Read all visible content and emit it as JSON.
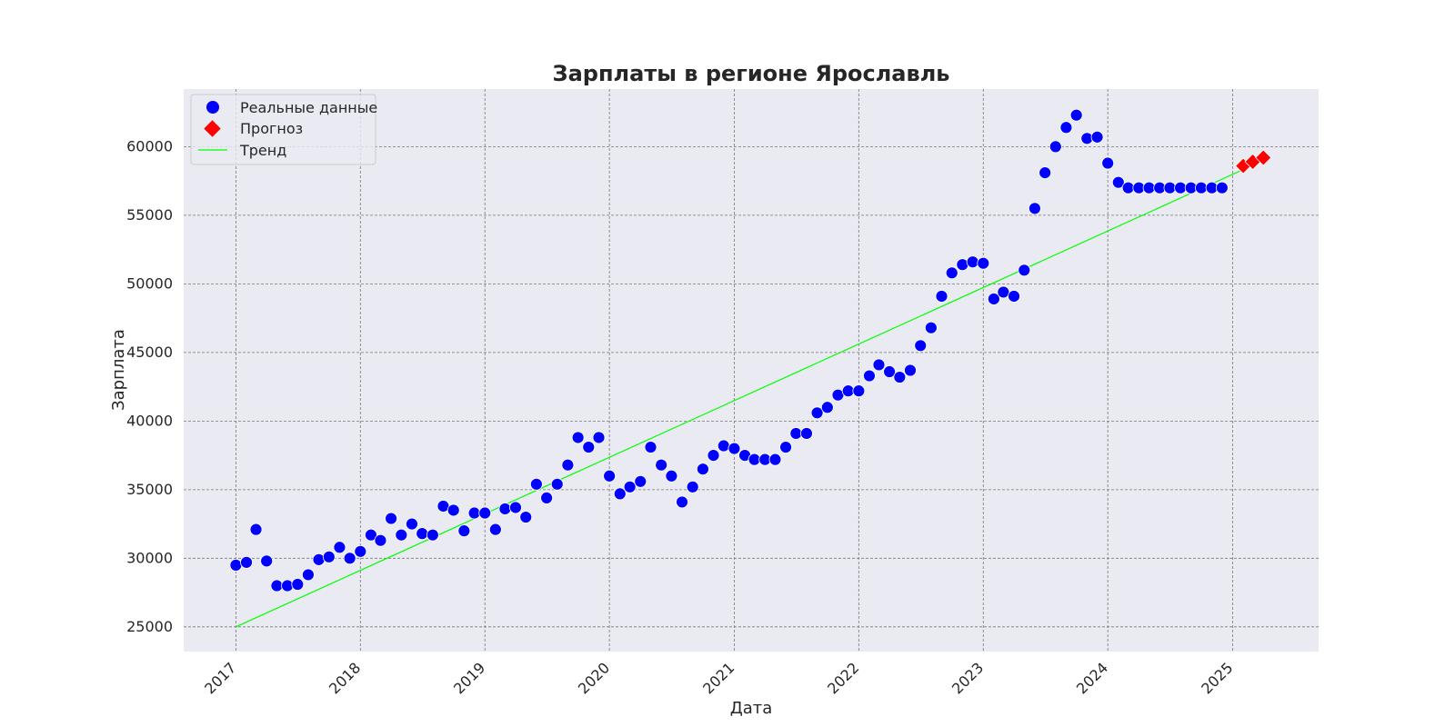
{
  "chart_data": {
    "type": "scatter",
    "title": "Зарплаты в регионе Ярославль",
    "xlabel": "Дата",
    "ylabel": "Зарплата",
    "x_type": "date",
    "xlim": [
      "2016-08-01",
      "2025-09-10"
    ],
    "ylim": [
      23200,
      64200
    ],
    "grid": true,
    "legend_position": "top-left",
    "x_ticks": [
      {
        "value": "2017-01-01",
        "label": "2017"
      },
      {
        "value": "2018-01-01",
        "label": "2018"
      },
      {
        "value": "2019-01-01",
        "label": "2019"
      },
      {
        "value": "2020-01-01",
        "label": "2020"
      },
      {
        "value": "2021-01-01",
        "label": "2021"
      },
      {
        "value": "2022-01-01",
        "label": "2022"
      },
      {
        "value": "2023-01-01",
        "label": "2023"
      },
      {
        "value": "2024-01-01",
        "label": "2024"
      },
      {
        "value": "2025-01-01",
        "label": "2025"
      }
    ],
    "y_ticks": [
      {
        "value": 25000,
        "label": "25000"
      },
      {
        "value": 30000,
        "label": "30000"
      },
      {
        "value": 35000,
        "label": "35000"
      },
      {
        "value": 40000,
        "label": "40000"
      },
      {
        "value": 45000,
        "label": "45000"
      },
      {
        "value": 50000,
        "label": "50000"
      },
      {
        "value": 55000,
        "label": "55000"
      },
      {
        "value": 60000,
        "label": "60000"
      }
    ],
    "series": [
      {
        "name": "Реальные данные",
        "type": "scatter",
        "marker": "circle",
        "color": "#0000ff",
        "points": [
          {
            "x": "2017-01-01",
            "y": 29500
          },
          {
            "x": "2017-02-01",
            "y": 29700
          },
          {
            "x": "2017-03-01",
            "y": 32100
          },
          {
            "x": "2017-04-01",
            "y": 29800
          },
          {
            "x": "2017-05-01",
            "y": 28000
          },
          {
            "x": "2017-06-01",
            "y": 28000
          },
          {
            "x": "2017-07-01",
            "y": 28100
          },
          {
            "x": "2017-08-01",
            "y": 28800
          },
          {
            "x": "2017-09-01",
            "y": 29900
          },
          {
            "x": "2017-10-01",
            "y": 30100
          },
          {
            "x": "2017-11-01",
            "y": 30800
          },
          {
            "x": "2017-12-01",
            "y": 30000
          },
          {
            "x": "2018-01-01",
            "y": 30500
          },
          {
            "x": "2018-02-01",
            "y": 31700
          },
          {
            "x": "2018-03-01",
            "y": 31300
          },
          {
            "x": "2018-04-01",
            "y": 32900
          },
          {
            "x": "2018-05-01",
            "y": 31700
          },
          {
            "x": "2018-06-01",
            "y": 32500
          },
          {
            "x": "2018-07-01",
            "y": 31800
          },
          {
            "x": "2018-08-01",
            "y": 31700
          },
          {
            "x": "2018-09-01",
            "y": 33800
          },
          {
            "x": "2018-10-01",
            "y": 33500
          },
          {
            "x": "2018-11-01",
            "y": 32000
          },
          {
            "x": "2018-12-01",
            "y": 33300
          },
          {
            "x": "2019-01-01",
            "y": 33300
          },
          {
            "x": "2019-02-01",
            "y": 32100
          },
          {
            "x": "2019-03-01",
            "y": 33600
          },
          {
            "x": "2019-04-01",
            "y": 33700
          },
          {
            "x": "2019-05-01",
            "y": 33000
          },
          {
            "x": "2019-06-01",
            "y": 35400
          },
          {
            "x": "2019-07-01",
            "y": 34400
          },
          {
            "x": "2019-08-01",
            "y": 35400
          },
          {
            "x": "2019-09-01",
            "y": 36800
          },
          {
            "x": "2019-10-01",
            "y": 38800
          },
          {
            "x": "2019-11-01",
            "y": 38100
          },
          {
            "x": "2019-12-01",
            "y": 38800
          },
          {
            "x": "2020-01-01",
            "y": 36000
          },
          {
            "x": "2020-02-01",
            "y": 34700
          },
          {
            "x": "2020-03-01",
            "y": 35200
          },
          {
            "x": "2020-04-01",
            "y": 35600
          },
          {
            "x": "2020-05-01",
            "y": 38100
          },
          {
            "x": "2020-06-01",
            "y": 36800
          },
          {
            "x": "2020-07-01",
            "y": 36000
          },
          {
            "x": "2020-08-01",
            "y": 34100
          },
          {
            "x": "2020-09-01",
            "y": 35200
          },
          {
            "x": "2020-10-01",
            "y": 36500
          },
          {
            "x": "2020-11-01",
            "y": 37500
          },
          {
            "x": "2020-12-01",
            "y": 38200
          },
          {
            "x": "2021-01-01",
            "y": 38000
          },
          {
            "x": "2021-02-01",
            "y": 37500
          },
          {
            "x": "2021-03-01",
            "y": 37200
          },
          {
            "x": "2021-04-01",
            "y": 37200
          },
          {
            "x": "2021-05-01",
            "y": 37200
          },
          {
            "x": "2021-06-01",
            "y": 38100
          },
          {
            "x": "2021-07-01",
            "y": 39100
          },
          {
            "x": "2021-08-01",
            "y": 39100
          },
          {
            "x": "2021-09-01",
            "y": 40600
          },
          {
            "x": "2021-10-01",
            "y": 41000
          },
          {
            "x": "2021-11-01",
            "y": 41900
          },
          {
            "x": "2021-12-01",
            "y": 42200
          },
          {
            "x": "2022-01-01",
            "y": 42200
          },
          {
            "x": "2022-02-01",
            "y": 43300
          },
          {
            "x": "2022-03-01",
            "y": 44100
          },
          {
            "x": "2022-04-01",
            "y": 43600
          },
          {
            "x": "2022-05-01",
            "y": 43200
          },
          {
            "x": "2022-06-01",
            "y": 43700
          },
          {
            "x": "2022-07-01",
            "y": 45500
          },
          {
            "x": "2022-08-01",
            "y": 46800
          },
          {
            "x": "2022-09-01",
            "y": 49100
          },
          {
            "x": "2022-10-01",
            "y": 50800
          },
          {
            "x": "2022-11-01",
            "y": 51400
          },
          {
            "x": "2022-12-01",
            "y": 51600
          },
          {
            "x": "2023-01-01",
            "y": 51500
          },
          {
            "x": "2023-02-01",
            "y": 48900
          },
          {
            "x": "2023-03-01",
            "y": 49400
          },
          {
            "x": "2023-04-01",
            "y": 49100
          },
          {
            "x": "2023-05-01",
            "y": 51000
          },
          {
            "x": "2023-06-01",
            "y": 55500
          },
          {
            "x": "2023-07-01",
            "y": 58100
          },
          {
            "x": "2023-08-01",
            "y": 60000
          },
          {
            "x": "2023-09-01",
            "y": 61400
          },
          {
            "x": "2023-10-01",
            "y": 62300
          },
          {
            "x": "2023-11-01",
            "y": 60600
          },
          {
            "x": "2023-12-01",
            "y": 60700
          },
          {
            "x": "2024-01-01",
            "y": 58800
          },
          {
            "x": "2024-02-01",
            "y": 57400
          },
          {
            "x": "2024-03-01",
            "y": 57000
          },
          {
            "x": "2024-04-01",
            "y": 57000
          },
          {
            "x": "2024-05-01",
            "y": 57000
          },
          {
            "x": "2024-06-01",
            "y": 57000
          },
          {
            "x": "2024-07-01",
            "y": 57000
          },
          {
            "x": "2024-08-01",
            "y": 57000
          },
          {
            "x": "2024-09-01",
            "y": 57000
          },
          {
            "x": "2024-10-01",
            "y": 57000
          },
          {
            "x": "2024-11-01",
            "y": 57000
          },
          {
            "x": "2024-12-01",
            "y": 57000
          }
        ]
      },
      {
        "name": "Прогноз",
        "type": "scatter",
        "marker": "diamond",
        "color": "#ff0000",
        "points": [
          {
            "x": "2025-02-01",
            "y": 58600
          },
          {
            "x": "2025-03-01",
            "y": 58900
          },
          {
            "x": "2025-04-01",
            "y": 59200
          }
        ]
      },
      {
        "name": "Тренд",
        "type": "line",
        "color": "#00ff00",
        "points": [
          {
            "x": "2017-01-01",
            "y": 25000
          },
          {
            "x": "2025-04-01",
            "y": 59000
          }
        ]
      }
    ]
  }
}
